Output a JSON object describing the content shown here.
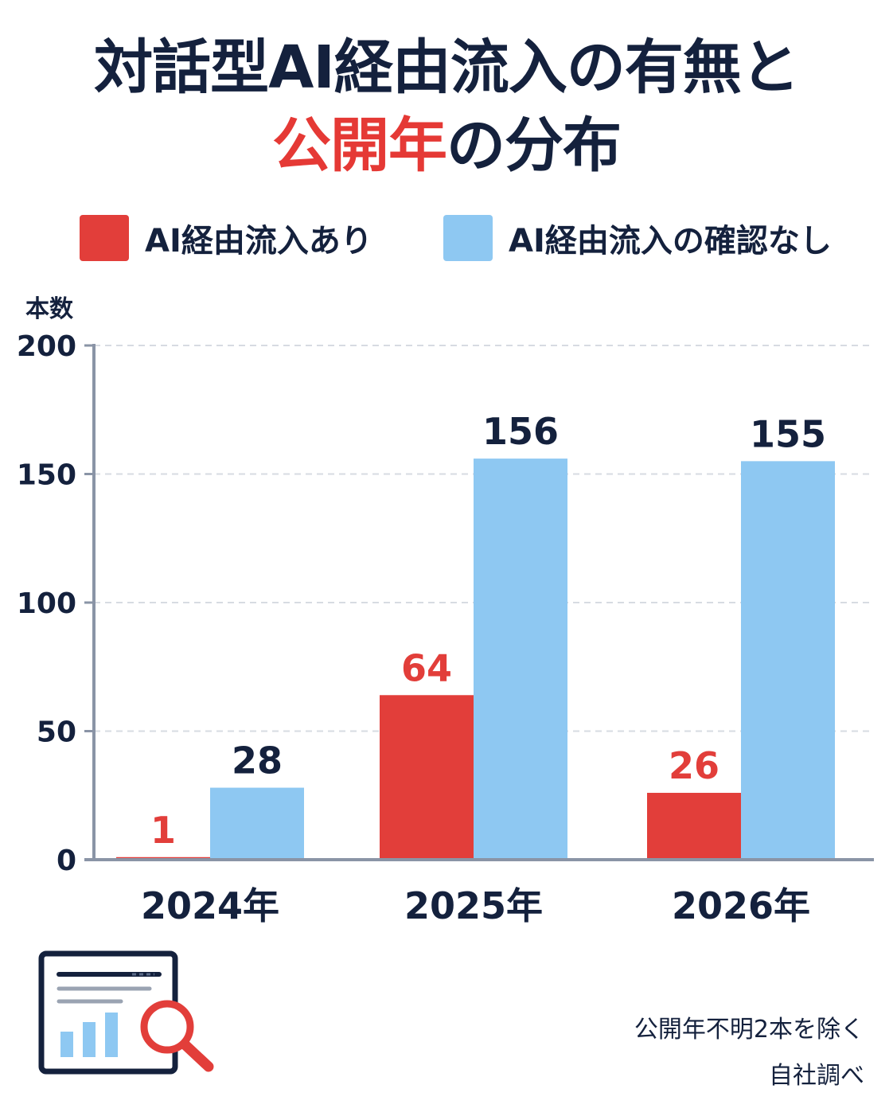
{
  "title": {
    "line1": "対話型AI経由流入の有無と",
    "line2_accent": "公開年",
    "line2_rest": "の分布"
  },
  "colors": {
    "accent": "#e53935",
    "series_a": "#e23e3a",
    "series_b": "#8ec8f2",
    "text": "#14213d",
    "axis": "#8a94a6",
    "grid": "#d7dbe2"
  },
  "legend": [
    {
      "label": "AI経由流入あり",
      "color": "#e23e3a"
    },
    {
      "label": "AI経由流入の確認なし",
      "color": "#8ec8f2"
    }
  ],
  "chart_data": {
    "type": "bar",
    "ylabel": "本数",
    "ylim": [
      0,
      200
    ],
    "yticks": [
      0,
      50,
      100,
      150,
      200
    ],
    "categories": [
      "2024年",
      "2025年",
      "2026年"
    ],
    "series": [
      {
        "name": "AI経由流入あり",
        "values": [
          1,
          64,
          26
        ]
      },
      {
        "name": "AI経由流入の確認なし",
        "values": [
          28,
          156,
          155
        ]
      }
    ],
    "grid": true
  },
  "footnotes": [
    "公開年不明2本を除く",
    "自社調べ"
  ],
  "icon": "report-search-icon"
}
